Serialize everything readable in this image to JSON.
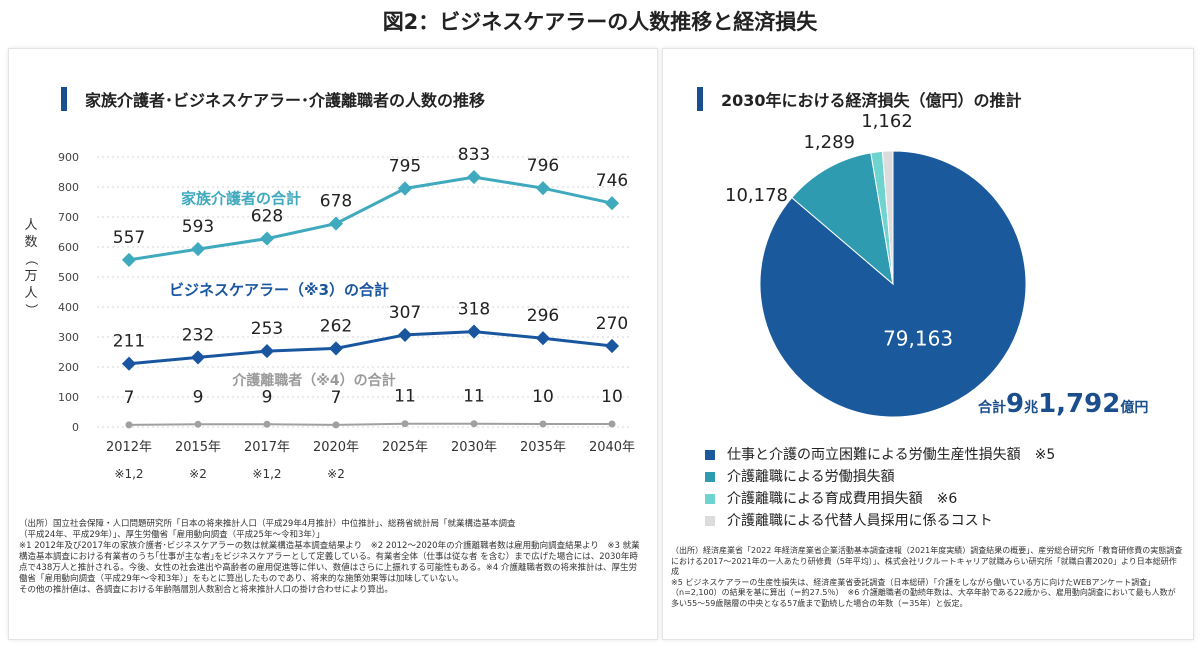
{
  "main_title": "図2：ビジネスケアラーの人数推移と経済損失",
  "left_panel": {
    "title": "家族介護者･ビジネスケアラー･介護離職者の人数の推移",
    "ylabel": "人数（万人）",
    "footnote": "（出所）国立社会保障・人口問題研究所「日本の将来推計人口（平成29年4月推計）中位推計」、総務省統計局「就業構造基本調査\n（平成24年、平成29年）」、厚生労働省「雇用動向調査（平成25年～令和3年）」\n※1 2012年及び2017年の家族介護者･ビジネスケアラーの数は就業構造基本調査結果より　※2 2012～2020年の介護離職者数は雇用動向調査結果より　※3 就業構造基本調査における有業者のうち｢仕事が主な者｣をビジネスケアラーとして定義している。有業者全体（仕事は従な者 を含む）まで広げた場合には、2030年時点で438万人と推計される。今後、女性の社会進出や高齢者の雇用促進等に伴い、数値はさらに上振れする可能性もある。※4 介護離職者数の将来推計は、厚生労働省「雇用動向調査（平成29年～令和3年）」をもとに算出したものであり、将来的な施策効果等は加味していない。\nその他の推計値は、各調査における年齢階層別人数割合と将来推計人口の掛け合わせにより算出。"
  },
  "right_panel": {
    "title": "2030年における経済損失（億円）の推計",
    "total_prefix": "合計",
    "total_big1": "9",
    "total_mid": "兆",
    "total_big2": "1,792",
    "total_suffix": "億円",
    "footnote": "（出所）経済産業省「2022 年経済産業省企業活動基本調査速報（2021年度実績）調査結果の概要」、産労総合研究所「教育研修費の実態調査における2017～2021年の一人あたり研修費（5年平均）」、株式会社リクルートキャリア就職みらい研究所「就職白書2020」より日本総研作成\n※5 ビジネスケアラーの生産性損失は、経済産業省委託調査（日本総研）「介護をしながら働いている方に向けたWEBアンケート調査」（n=2,100）の結果を基に算出（＝約27.5％）　※6 介護離職者の勤続年数は、大卒年齢である22歳から、雇用動向調査において最も人数が多い55～59歳階層の中央となる57歳まで勤続した場合の年数（＝35年）と仮定。"
  },
  "chart_data": [
    {
      "type": "line",
      "title": "家族介護者･ビジネスケアラー･介護離職者の人数の推移",
      "ylabel": "人数（万人）",
      "ylim": [
        0,
        900
      ],
      "yticks": [
        0,
        100,
        200,
        300,
        400,
        500,
        600,
        700,
        800,
        900
      ],
      "categories": [
        "2012年",
        "2015年",
        "2017年",
        "2020年",
        "2025年",
        "2030年",
        "2035年",
        "2040年"
      ],
      "category_notes": [
        "※1,2",
        "※2",
        "※1,2",
        "※2",
        "",
        "",
        "",
        ""
      ],
      "series": [
        {
          "name": "家族介護者の合計",
          "color": "#3fa9be",
          "values": [
            557,
            593,
            628,
            678,
            795,
            833,
            796,
            746
          ]
        },
        {
          "name": "ビジネスケアラー（※3）の合計",
          "color": "#1a56a0",
          "values": [
            211,
            232,
            253,
            262,
            307,
            318,
            296,
            270
          ]
        },
        {
          "name": "介護離職者（※4）の合計",
          "color": "#a0a0a0",
          "values": [
            7,
            9,
            9,
            7,
            11,
            11,
            10,
            10
          ]
        }
      ]
    },
    {
      "type": "pie",
      "title": "2030年における経済損失（億円）の推計",
      "slices": [
        {
          "label": "仕事と介護の両立困難による労働生産性損失額",
          "note": "※5",
          "value": 79163,
          "color": "#1a5a9c"
        },
        {
          "label": "介護離職による労働損失額",
          "note": "",
          "value": 10178,
          "color": "#2e9bb0"
        },
        {
          "label": "介護離職による育成費用損失額",
          "note": "※6",
          "value": 1289,
          "color": "#6fd3cf"
        },
        {
          "label": "介護離職による代替人員採用に係るコスト",
          "note": "",
          "value": 1162,
          "color": "#dcdcdc"
        }
      ],
      "value_labels": [
        "79,163",
        "10,178",
        "1,289",
        "1,162"
      ]
    }
  ]
}
